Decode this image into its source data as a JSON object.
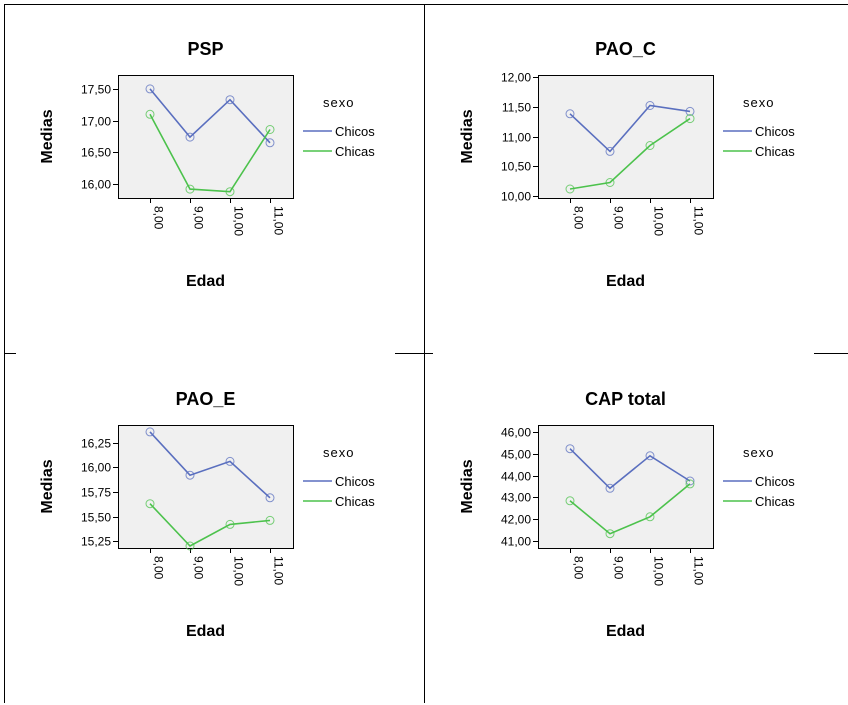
{
  "chart_data": [
    {
      "type": "line",
      "title": "PSP",
      "xlabel": "Edad",
      "ylabel": "Medias",
      "categories": [
        "8,00",
        "9,00",
        "10,00",
        "11,00"
      ],
      "yticks": [
        "16,00",
        "16,50",
        "17,00",
        "17,50"
      ],
      "ytick_values": [
        16.0,
        16.5,
        17.0,
        17.5
      ],
      "ylim": [
        15.78,
        17.72
      ],
      "legend_title": "sexo",
      "legend_position": "right",
      "series": [
        {
          "name": "Chicos",
          "color": "#5a6fbf",
          "values": [
            17.5,
            16.74,
            17.33,
            16.65
          ]
        },
        {
          "name": "Chicas",
          "color": "#4cc24c",
          "values": [
            17.1,
            15.92,
            15.88,
            16.86
          ]
        }
      ]
    },
    {
      "type": "line",
      "title": "PAO_C",
      "xlabel": "Edad",
      "ylabel": "Medias",
      "categories": [
        "8,00",
        "9,00",
        "10,00",
        "11,00"
      ],
      "yticks": [
        "10,00",
        "10,50",
        "11,00",
        "11,50",
        "12,00"
      ],
      "ytick_values": [
        10.0,
        10.5,
        11.0,
        11.5,
        12.0
      ],
      "ylim": [
        9.97,
        12.03
      ],
      "legend_title": "sexo",
      "legend_position": "right",
      "series": [
        {
          "name": "Chicos",
          "color": "#5a6fbf",
          "values": [
            11.38,
            10.75,
            11.52,
            11.42
          ]
        },
        {
          "name": "Chicas",
          "color": "#4cc24c",
          "values": [
            10.12,
            10.23,
            10.85,
            11.3
          ]
        }
      ]
    },
    {
      "type": "line",
      "title": "PAO_E",
      "xlabel": "Edad",
      "ylabel": "Medias",
      "categories": [
        "8,00",
        "9,00",
        "10,00",
        "11,00"
      ],
      "yticks": [
        "15,25",
        "15,50",
        "15,75",
        "16,00",
        "16,25"
      ],
      "ytick_values": [
        15.25,
        15.5,
        15.75,
        16.0,
        16.25
      ],
      "ylim": [
        15.18,
        16.43
      ],
      "legend_title": "sexo",
      "legend_position": "right",
      "series": [
        {
          "name": "Chicos",
          "color": "#5a6fbf",
          "values": [
            16.36,
            15.92,
            16.06,
            15.69
          ]
        },
        {
          "name": "Chicas",
          "color": "#4cc24c",
          "values": [
            15.63,
            15.2,
            15.42,
            15.46
          ]
        }
      ]
    },
    {
      "type": "line",
      "title": "CAP total",
      "xlabel": "Edad",
      "ylabel": "Medias",
      "categories": [
        "8,00",
        "9,00",
        "10,00",
        "11,00"
      ],
      "yticks": [
        "41,00",
        "42,00",
        "43,00",
        "44,00",
        "45,00",
        "46,00"
      ],
      "ytick_values": [
        41.0,
        42.0,
        43.0,
        44.0,
        45.0,
        46.0
      ],
      "ylim": [
        40.7,
        46.3
      ],
      "legend_title": "sexo",
      "legend_position": "right",
      "series": [
        {
          "name": "Chicos",
          "color": "#5a6fbf",
          "values": [
            45.22,
            43.42,
            44.9,
            43.75
          ]
        },
        {
          "name": "Chicas",
          "color": "#4cc24c",
          "values": [
            42.85,
            41.35,
            42.12,
            43.62
          ]
        }
      ]
    }
  ]
}
